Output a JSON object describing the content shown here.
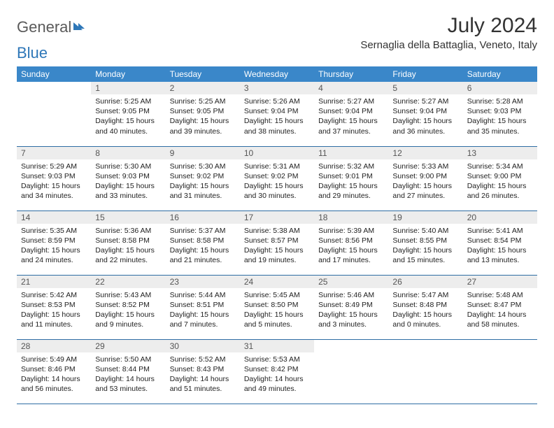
{
  "logo": {
    "part1": "General",
    "part2": "Blue"
  },
  "title": "July 2024",
  "location": "Sernaglia della Battaglia, Veneto, Italy",
  "colors": {
    "header_bg": "#3a87c9",
    "header_text": "#ffffff",
    "daynum_bg": "#ededed",
    "border": "#2e6da4",
    "logo_gray": "#5a5a5a",
    "logo_blue": "#2e77b8"
  },
  "weekdays": [
    "Sunday",
    "Monday",
    "Tuesday",
    "Wednesday",
    "Thursday",
    "Friday",
    "Saturday"
  ],
  "weeks": [
    [
      null,
      {
        "n": "1",
        "sr": "5:25 AM",
        "ss": "9:05 PM",
        "dl": "15 hours and 40 minutes."
      },
      {
        "n": "2",
        "sr": "5:25 AM",
        "ss": "9:05 PM",
        "dl": "15 hours and 39 minutes."
      },
      {
        "n": "3",
        "sr": "5:26 AM",
        "ss": "9:04 PM",
        "dl": "15 hours and 38 minutes."
      },
      {
        "n": "4",
        "sr": "5:27 AM",
        "ss": "9:04 PM",
        "dl": "15 hours and 37 minutes."
      },
      {
        "n": "5",
        "sr": "5:27 AM",
        "ss": "9:04 PM",
        "dl": "15 hours and 36 minutes."
      },
      {
        "n": "6",
        "sr": "5:28 AM",
        "ss": "9:03 PM",
        "dl": "15 hours and 35 minutes."
      }
    ],
    [
      {
        "n": "7",
        "sr": "5:29 AM",
        "ss": "9:03 PM",
        "dl": "15 hours and 34 minutes."
      },
      {
        "n": "8",
        "sr": "5:30 AM",
        "ss": "9:03 PM",
        "dl": "15 hours and 33 minutes."
      },
      {
        "n": "9",
        "sr": "5:30 AM",
        "ss": "9:02 PM",
        "dl": "15 hours and 31 minutes."
      },
      {
        "n": "10",
        "sr": "5:31 AM",
        "ss": "9:02 PM",
        "dl": "15 hours and 30 minutes."
      },
      {
        "n": "11",
        "sr": "5:32 AM",
        "ss": "9:01 PM",
        "dl": "15 hours and 29 minutes."
      },
      {
        "n": "12",
        "sr": "5:33 AM",
        "ss": "9:00 PM",
        "dl": "15 hours and 27 minutes."
      },
      {
        "n": "13",
        "sr": "5:34 AM",
        "ss": "9:00 PM",
        "dl": "15 hours and 26 minutes."
      }
    ],
    [
      {
        "n": "14",
        "sr": "5:35 AM",
        "ss": "8:59 PM",
        "dl": "15 hours and 24 minutes."
      },
      {
        "n": "15",
        "sr": "5:36 AM",
        "ss": "8:58 PM",
        "dl": "15 hours and 22 minutes."
      },
      {
        "n": "16",
        "sr": "5:37 AM",
        "ss": "8:58 PM",
        "dl": "15 hours and 21 minutes."
      },
      {
        "n": "17",
        "sr": "5:38 AM",
        "ss": "8:57 PM",
        "dl": "15 hours and 19 minutes."
      },
      {
        "n": "18",
        "sr": "5:39 AM",
        "ss": "8:56 PM",
        "dl": "15 hours and 17 minutes."
      },
      {
        "n": "19",
        "sr": "5:40 AM",
        "ss": "8:55 PM",
        "dl": "15 hours and 15 minutes."
      },
      {
        "n": "20",
        "sr": "5:41 AM",
        "ss": "8:54 PM",
        "dl": "15 hours and 13 minutes."
      }
    ],
    [
      {
        "n": "21",
        "sr": "5:42 AM",
        "ss": "8:53 PM",
        "dl": "15 hours and 11 minutes."
      },
      {
        "n": "22",
        "sr": "5:43 AM",
        "ss": "8:52 PM",
        "dl": "15 hours and 9 minutes."
      },
      {
        "n": "23",
        "sr": "5:44 AM",
        "ss": "8:51 PM",
        "dl": "15 hours and 7 minutes."
      },
      {
        "n": "24",
        "sr": "5:45 AM",
        "ss": "8:50 PM",
        "dl": "15 hours and 5 minutes."
      },
      {
        "n": "25",
        "sr": "5:46 AM",
        "ss": "8:49 PM",
        "dl": "15 hours and 3 minutes."
      },
      {
        "n": "26",
        "sr": "5:47 AM",
        "ss": "8:48 PM",
        "dl": "15 hours and 0 minutes."
      },
      {
        "n": "27",
        "sr": "5:48 AM",
        "ss": "8:47 PM",
        "dl": "14 hours and 58 minutes."
      }
    ],
    [
      {
        "n": "28",
        "sr": "5:49 AM",
        "ss": "8:46 PM",
        "dl": "14 hours and 56 minutes."
      },
      {
        "n": "29",
        "sr": "5:50 AM",
        "ss": "8:44 PM",
        "dl": "14 hours and 53 minutes."
      },
      {
        "n": "30",
        "sr": "5:52 AM",
        "ss": "8:43 PM",
        "dl": "14 hours and 51 minutes."
      },
      {
        "n": "31",
        "sr": "5:53 AM",
        "ss": "8:42 PM",
        "dl": "14 hours and 49 minutes."
      },
      null,
      null,
      null
    ]
  ],
  "labels": {
    "sunrise": "Sunrise:",
    "sunset": "Sunset:",
    "daylight": "Daylight:"
  }
}
